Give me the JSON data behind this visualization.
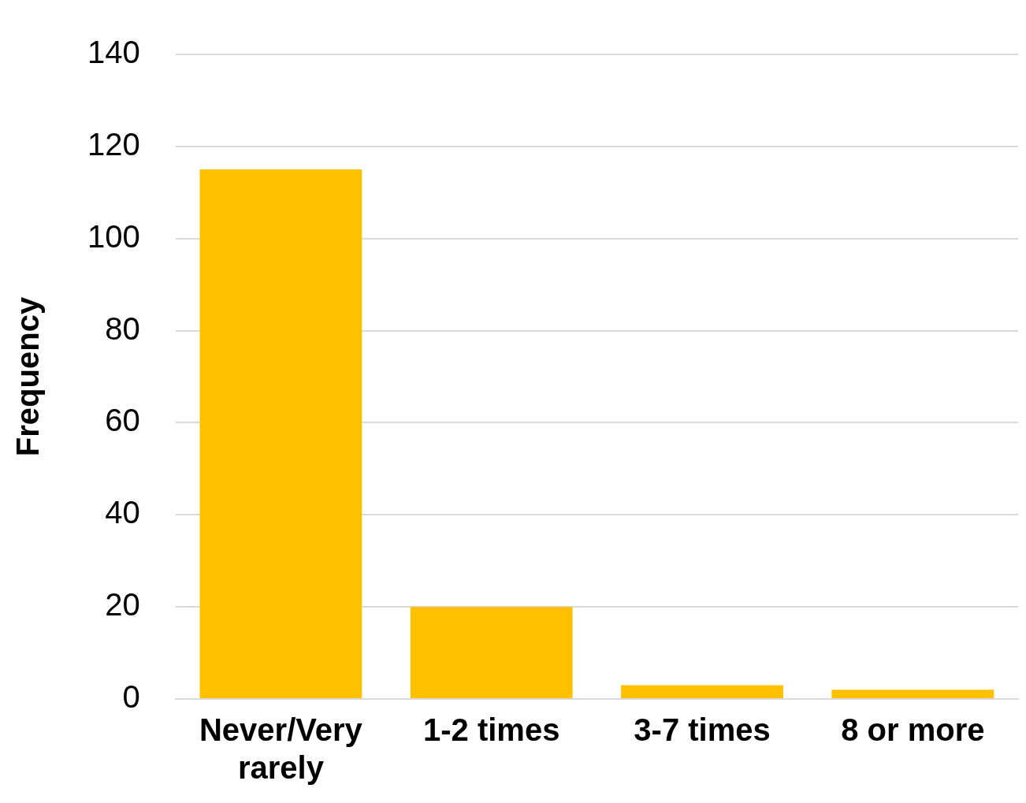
{
  "chart_data": {
    "type": "bar",
    "ylabel": "Frequency",
    "categories": [
      "Never/Very rarely",
      "1-2 times",
      "3-7 times",
      "8 or more"
    ],
    "values": [
      115,
      20,
      3,
      2
    ],
    "color": "#ffc000",
    "ylim": [
      0,
      140
    ],
    "yticks": [
      0,
      20,
      40,
      60,
      80,
      100,
      120,
      140
    ],
    "grid": "y",
    "legend": false
  }
}
